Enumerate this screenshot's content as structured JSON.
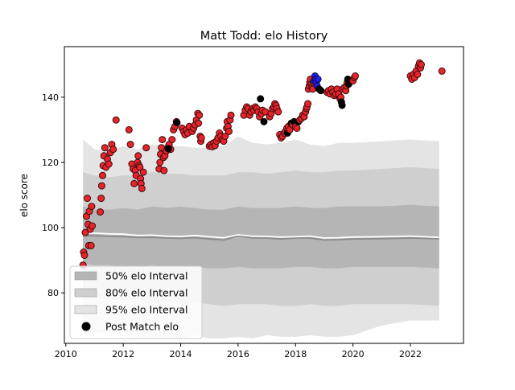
{
  "chart_data": {
    "type": "scatter",
    "title": "Matt Todd: elo History",
    "xlabel": "",
    "ylabel": "elo score",
    "xlim": [
      2009.95,
      2023.85
    ],
    "ylim": [
      64.5,
      155.5
    ],
    "x_ticks": [
      2010,
      2012,
      2014,
      2016,
      2018,
      2020,
      2022
    ],
    "x_tick_labels": [
      "2010",
      "2012",
      "2014",
      "2016",
      "2018",
      "2020",
      "2022"
    ],
    "y_ticks": [
      80,
      100,
      120,
      140
    ],
    "y_tick_labels": [
      "80",
      "100",
      "120",
      "140"
    ],
    "grid": false,
    "legend_position": "lower left",
    "colors": {
      "band_50": "#b5b5b5",
      "band_80": "#cfcfcf",
      "band_95": "#e4e4e4",
      "median_line": "#8a8a8a",
      "mean_line": "#ffffff",
      "point_red": "#e8242b",
      "point_blue": "#1f1fdf",
      "point_black": "#000000"
    },
    "legend": [
      {
        "label": "50% elo Interval",
        "swatch": "band_50"
      },
      {
        "label": "80% elo Interval",
        "swatch": "band_80"
      },
      {
        "label": "95% elo Interval",
        "swatch": "band_95"
      },
      {
        "label": "Post Match elo",
        "swatch": "marker"
      }
    ],
    "bands": {
      "x": [
        2010.6,
        2011.0,
        2011.5,
        2012.0,
        2012.5,
        2013.0,
        2013.5,
        2014.0,
        2014.5,
        2015.0,
        2015.5,
        2016.0,
        2016.5,
        2017.0,
        2017.5,
        2018.0,
        2018.5,
        2019.0,
        2019.5,
        2020.0,
        2021.0,
        2022.0,
        2023.0
      ],
      "p95_hi": [
        127,
        124,
        123.5,
        125,
        124,
        125.5,
        125,
        125,
        124.5,
        124.5,
        125,
        128,
        126,
        125.5,
        126,
        127,
        125.5,
        125,
        126,
        126,
        126.5,
        127,
        126.5
      ],
      "p80_hi": [
        117,
        116,
        115.5,
        116,
        116,
        117,
        116.5,
        116.5,
        116,
        116,
        116,
        117,
        117,
        116.5,
        117,
        117.5,
        117,
        117,
        117.5,
        117.5,
        118,
        118.5,
        118
      ],
      "p50_hi": [
        106.5,
        105.5,
        105.5,
        106,
        105.5,
        106.5,
        106,
        106.5,
        106,
        105.5,
        105.5,
        106.5,
        106,
        106,
        106,
        106.5,
        106,
        106,
        106.5,
        106.5,
        106.5,
        107,
        106.5
      ],
      "median": [
        97.5,
        97.5,
        97.3,
        97.2,
        97.0,
        97.0,
        96.8,
        96.7,
        96.9,
        96.5,
        96.2,
        97.5,
        96.8,
        96.8,
        96.5,
        96.8,
        96.8,
        96.2,
        96.3,
        96.5,
        96.6,
        96.8,
        96.6
      ],
      "mean": [
        98.2,
        98.3,
        98.1,
        98.0,
        97.6,
        97.7,
        97.4,
        97.3,
        97.6,
        97.2,
        96.9,
        97.8,
        97.4,
        97.3,
        97.1,
        97.2,
        97.4,
        96.8,
        96.9,
        97.1,
        97.2,
        97.4,
        97.0
      ],
      "p50_lo": [
        89,
        88.5,
        88.5,
        88,
        88,
        88.5,
        88,
        88,
        88,
        87.5,
        87.5,
        88,
        87.5,
        87.5,
        87.5,
        88,
        88,
        87.5,
        87.5,
        88,
        88,
        88,
        87.5
      ],
      "p80_lo": [
        78,
        78.5,
        78,
        77.5,
        77.5,
        77,
        77,
        76.5,
        77,
        76.5,
        76,
        76.5,
        76.5,
        76.5,
        76,
        76,
        76.5,
        76,
        76,
        76.5,
        76.5,
        76.5,
        76
      ],
      "p95_lo": [
        67,
        68,
        67.5,
        67,
        66.5,
        66.5,
        66.5,
        66,
        67,
        66,
        66,
        66.5,
        66,
        67,
        66.5,
        66.5,
        67,
        66.5,
        66.5,
        67,
        70,
        71.5,
        71.5
      ]
    },
    "points": [
      {
        "x": 2010.6,
        "y": 88.5,
        "c": "red"
      },
      {
        "x": 2010.62,
        "y": 92.5,
        "c": "red"
      },
      {
        "x": 2010.65,
        "y": 91.5,
        "c": "red"
      },
      {
        "x": 2010.68,
        "y": 98.5,
        "c": "red"
      },
      {
        "x": 2010.72,
        "y": 103.5,
        "c": "red"
      },
      {
        "x": 2010.75,
        "y": 109.0,
        "c": "red"
      },
      {
        "x": 2010.78,
        "y": 101.0,
        "c": "red"
      },
      {
        "x": 2010.8,
        "y": 94.5,
        "c": "red"
      },
      {
        "x": 2010.82,
        "y": 105.0,
        "c": "red"
      },
      {
        "x": 2010.85,
        "y": 99.5,
        "c": "red"
      },
      {
        "x": 2010.88,
        "y": 94.5,
        "c": "red"
      },
      {
        "x": 2010.9,
        "y": 106.5,
        "c": "red"
      },
      {
        "x": 2010.92,
        "y": 100.5,
        "c": "red"
      },
      {
        "x": 2011.2,
        "y": 104.8,
        "c": "red"
      },
      {
        "x": 2011.23,
        "y": 109.0,
        "c": "red"
      },
      {
        "x": 2011.25,
        "y": 112.8,
        "c": "red"
      },
      {
        "x": 2011.28,
        "y": 116.0,
        "c": "red"
      },
      {
        "x": 2011.3,
        "y": 119.0,
        "c": "red"
      },
      {
        "x": 2011.33,
        "y": 122.0,
        "c": "red"
      },
      {
        "x": 2011.36,
        "y": 124.5,
        "c": "red"
      },
      {
        "x": 2011.4,
        "y": 118.5,
        "c": "red"
      },
      {
        "x": 2011.45,
        "y": 121.0,
        "c": "red"
      },
      {
        "x": 2011.5,
        "y": 119.5,
        "c": "red"
      },
      {
        "x": 2011.55,
        "y": 123.0,
        "c": "red"
      },
      {
        "x": 2011.6,
        "y": 125.5,
        "c": "red"
      },
      {
        "x": 2011.65,
        "y": 124.0,
        "c": "red"
      },
      {
        "x": 2011.75,
        "y": 133.0,
        "c": "red"
      },
      {
        "x": 2012.2,
        "y": 130.0,
        "c": "red"
      },
      {
        "x": 2012.25,
        "y": 125.5,
        "c": "red"
      },
      {
        "x": 2012.3,
        "y": 119.5,
        "c": "red"
      },
      {
        "x": 2012.35,
        "y": 118.0,
        "c": "red"
      },
      {
        "x": 2012.38,
        "y": 113.5,
        "c": "red"
      },
      {
        "x": 2012.42,
        "y": 117.5,
        "c": "red"
      },
      {
        "x": 2012.45,
        "y": 116.0,
        "c": "red"
      },
      {
        "x": 2012.5,
        "y": 120.0,
        "c": "red"
      },
      {
        "x": 2012.52,
        "y": 122.0,
        "c": "red"
      },
      {
        "x": 2012.55,
        "y": 119.0,
        "c": "red"
      },
      {
        "x": 2012.58,
        "y": 118.5,
        "c": "red"
      },
      {
        "x": 2012.6,
        "y": 115.0,
        "c": "red"
      },
      {
        "x": 2012.62,
        "y": 113.5,
        "c": "red"
      },
      {
        "x": 2012.65,
        "y": 112.0,
        "c": "red"
      },
      {
        "x": 2012.7,
        "y": 117.0,
        "c": "red"
      },
      {
        "x": 2012.8,
        "y": 124.5,
        "c": "red"
      },
      {
        "x": 2013.25,
        "y": 118.0,
        "c": "red"
      },
      {
        "x": 2013.28,
        "y": 120.0,
        "c": "red"
      },
      {
        "x": 2013.3,
        "y": 122.5,
        "c": "red"
      },
      {
        "x": 2013.33,
        "y": 124.5,
        "c": "red"
      },
      {
        "x": 2013.36,
        "y": 127.0,
        "c": "red"
      },
      {
        "x": 2013.4,
        "y": 121.5,
        "c": "red"
      },
      {
        "x": 2013.42,
        "y": 117.5,
        "c": "red"
      },
      {
        "x": 2013.45,
        "y": 122.0,
        "c": "red"
      },
      {
        "x": 2013.5,
        "y": 123.5,
        "c": "red"
      },
      {
        "x": 2013.55,
        "y": 124.5,
        "c": "red"
      },
      {
        "x": 2013.6,
        "y": 125.5,
        "c": "red"
      },
      {
        "x": 2013.65,
        "y": 124.0,
        "c": "red"
      },
      {
        "x": 2013.7,
        "y": 127.0,
        "c": "red"
      },
      {
        "x": 2013.75,
        "y": 130.0,
        "c": "red"
      },
      {
        "x": 2013.8,
        "y": 131.0,
        "c": "red"
      },
      {
        "x": 2013.85,
        "y": 132.5,
        "c": "red"
      },
      {
        "x": 2013.57,
        "y": 124.2,
        "c": "black"
      },
      {
        "x": 2013.87,
        "y": 132.2,
        "c": "black"
      },
      {
        "x": 2014.05,
        "y": 130.5,
        "c": "red"
      },
      {
        "x": 2014.1,
        "y": 129.5,
        "c": "red"
      },
      {
        "x": 2014.15,
        "y": 128.5,
        "c": "red"
      },
      {
        "x": 2014.2,
        "y": 130.0,
        "c": "red"
      },
      {
        "x": 2014.25,
        "y": 129.0,
        "c": "red"
      },
      {
        "x": 2014.3,
        "y": 131.0,
        "c": "red"
      },
      {
        "x": 2014.4,
        "y": 129.5,
        "c": "red"
      },
      {
        "x": 2014.45,
        "y": 130.5,
        "c": "red"
      },
      {
        "x": 2014.5,
        "y": 131.5,
        "c": "red"
      },
      {
        "x": 2014.55,
        "y": 133.0,
        "c": "red"
      },
      {
        "x": 2014.6,
        "y": 135.0,
        "c": "red"
      },
      {
        "x": 2014.62,
        "y": 132.0,
        "c": "red"
      },
      {
        "x": 2014.65,
        "y": 134.5,
        "c": "red"
      },
      {
        "x": 2014.68,
        "y": 128.0,
        "c": "red"
      },
      {
        "x": 2014.7,
        "y": 126.5,
        "c": "red"
      },
      {
        "x": 2014.72,
        "y": 127.5,
        "c": "red"
      },
      {
        "x": 2015.0,
        "y": 125.0,
        "c": "red"
      },
      {
        "x": 2015.05,
        "y": 125.5,
        "c": "red"
      },
      {
        "x": 2015.1,
        "y": 124.8,
        "c": "red"
      },
      {
        "x": 2015.15,
        "y": 126.0,
        "c": "red"
      },
      {
        "x": 2015.2,
        "y": 125.2,
        "c": "red"
      },
      {
        "x": 2015.25,
        "y": 126.5,
        "c": "red"
      },
      {
        "x": 2015.3,
        "y": 127.5,
        "c": "red"
      },
      {
        "x": 2015.35,
        "y": 129.0,
        "c": "red"
      },
      {
        "x": 2015.4,
        "y": 128.0,
        "c": "red"
      },
      {
        "x": 2015.45,
        "y": 127.0,
        "c": "red"
      },
      {
        "x": 2015.5,
        "y": 126.5,
        "c": "red"
      },
      {
        "x": 2015.55,
        "y": 128.0,
        "c": "red"
      },
      {
        "x": 2015.6,
        "y": 130.5,
        "c": "red"
      },
      {
        "x": 2015.62,
        "y": 132.5,
        "c": "red"
      },
      {
        "x": 2015.65,
        "y": 131.0,
        "c": "red"
      },
      {
        "x": 2015.68,
        "y": 129.5,
        "c": "red"
      },
      {
        "x": 2015.72,
        "y": 133.0,
        "c": "red"
      },
      {
        "x": 2015.75,
        "y": 134.5,
        "c": "red"
      },
      {
        "x": 2016.2,
        "y": 134.5,
        "c": "red"
      },
      {
        "x": 2016.25,
        "y": 136.0,
        "c": "red"
      },
      {
        "x": 2016.3,
        "y": 137.0,
        "c": "red"
      },
      {
        "x": 2016.35,
        "y": 136.5,
        "c": "red"
      },
      {
        "x": 2016.4,
        "y": 134.5,
        "c": "red"
      },
      {
        "x": 2016.45,
        "y": 135.5,
        "c": "red"
      },
      {
        "x": 2016.5,
        "y": 136.5,
        "c": "red"
      },
      {
        "x": 2016.55,
        "y": 136.0,
        "c": "red"
      },
      {
        "x": 2016.6,
        "y": 137.0,
        "c": "red"
      },
      {
        "x": 2016.65,
        "y": 136.5,
        "c": "red"
      },
      {
        "x": 2016.7,
        "y": 135.5,
        "c": "red"
      },
      {
        "x": 2016.75,
        "y": 134.0,
        "c": "red"
      },
      {
        "x": 2016.78,
        "y": 139.5,
        "c": "black"
      },
      {
        "x": 2016.82,
        "y": 135.0,
        "c": "red"
      },
      {
        "x": 2016.85,
        "y": 136.0,
        "c": "red"
      },
      {
        "x": 2016.9,
        "y": 132.5,
        "c": "black"
      },
      {
        "x": 2016.95,
        "y": 135.5,
        "c": "red"
      },
      {
        "x": 2017.1,
        "y": 134.0,
        "c": "red"
      },
      {
        "x": 2017.15,
        "y": 135.0,
        "c": "red"
      },
      {
        "x": 2017.2,
        "y": 136.5,
        "c": "red"
      },
      {
        "x": 2017.25,
        "y": 137.0,
        "c": "red"
      },
      {
        "x": 2017.28,
        "y": 138.0,
        "c": "red"
      },
      {
        "x": 2017.32,
        "y": 137.5,
        "c": "red"
      },
      {
        "x": 2017.35,
        "y": 136.5,
        "c": "red"
      },
      {
        "x": 2017.4,
        "y": 135.5,
        "c": "red"
      },
      {
        "x": 2017.45,
        "y": 128.5,
        "c": "red"
      },
      {
        "x": 2017.5,
        "y": 127.5,
        "c": "red"
      },
      {
        "x": 2017.55,
        "y": 128.0,
        "c": "red"
      },
      {
        "x": 2017.6,
        "y": 129.0,
        "c": "red"
      },
      {
        "x": 2017.65,
        "y": 129.5,
        "c": "red"
      },
      {
        "x": 2017.7,
        "y": 130.5,
        "c": "red"
      },
      {
        "x": 2017.72,
        "y": 129.0,
        "c": "black"
      },
      {
        "x": 2017.75,
        "y": 131.0,
        "c": "red"
      },
      {
        "x": 2017.8,
        "y": 130.0,
        "c": "red"
      },
      {
        "x": 2017.85,
        "y": 132.0,
        "c": "black"
      },
      {
        "x": 2017.9,
        "y": 131.5,
        "c": "red"
      },
      {
        "x": 2017.95,
        "y": 132.5,
        "c": "black"
      },
      {
        "x": 2018.0,
        "y": 131.0,
        "c": "red"
      },
      {
        "x": 2018.05,
        "y": 130.5,
        "c": "red"
      },
      {
        "x": 2018.1,
        "y": 132.5,
        "c": "black"
      },
      {
        "x": 2018.15,
        "y": 133.0,
        "c": "red"
      },
      {
        "x": 2018.2,
        "y": 133.5,
        "c": "red"
      },
      {
        "x": 2018.25,
        "y": 134.5,
        "c": "red"
      },
      {
        "x": 2018.3,
        "y": 134.0,
        "c": "red"
      },
      {
        "x": 2018.35,
        "y": 135.5,
        "c": "red"
      },
      {
        "x": 2018.38,
        "y": 136.5,
        "c": "red"
      },
      {
        "x": 2018.4,
        "y": 137.0,
        "c": "red"
      },
      {
        "x": 2018.43,
        "y": 138.0,
        "c": "red"
      },
      {
        "x": 2018.45,
        "y": 142.5,
        "c": "red"
      },
      {
        "x": 2018.48,
        "y": 143.5,
        "c": "red"
      },
      {
        "x": 2018.5,
        "y": 144.5,
        "c": "red"
      },
      {
        "x": 2018.52,
        "y": 145.5,
        "c": "red"
      },
      {
        "x": 2018.55,
        "y": 144.0,
        "c": "red"
      },
      {
        "x": 2018.58,
        "y": 143.0,
        "c": "red"
      },
      {
        "x": 2018.6,
        "y": 142.5,
        "c": "red"
      },
      {
        "x": 2018.62,
        "y": 144.5,
        "c": "red"
      },
      {
        "x": 2018.65,
        "y": 145.0,
        "c": "blue"
      },
      {
        "x": 2018.68,
        "y": 146.5,
        "c": "blue"
      },
      {
        "x": 2018.7,
        "y": 145.5,
        "c": "blue"
      },
      {
        "x": 2018.72,
        "y": 144.5,
        "c": "blue"
      },
      {
        "x": 2018.75,
        "y": 143.5,
        "c": "blue"
      },
      {
        "x": 2018.78,
        "y": 145.5,
        "c": "blue"
      },
      {
        "x": 2018.82,
        "y": 142.5,
        "c": "black"
      },
      {
        "x": 2018.88,
        "y": 142.0,
        "c": "black"
      },
      {
        "x": 2019.1,
        "y": 141.5,
        "c": "red"
      },
      {
        "x": 2019.15,
        "y": 142.0,
        "c": "red"
      },
      {
        "x": 2019.2,
        "y": 141.0,
        "c": "red"
      },
      {
        "x": 2019.25,
        "y": 142.5,
        "c": "red"
      },
      {
        "x": 2019.3,
        "y": 141.5,
        "c": "red"
      },
      {
        "x": 2019.35,
        "y": 140.5,
        "c": "red"
      },
      {
        "x": 2019.4,
        "y": 141.0,
        "c": "red"
      },
      {
        "x": 2019.45,
        "y": 142.5,
        "c": "red"
      },
      {
        "x": 2019.5,
        "y": 141.0,
        "c": "red"
      },
      {
        "x": 2019.55,
        "y": 139.5,
        "c": "red"
      },
      {
        "x": 2019.58,
        "y": 140.0,
        "c": "red"
      },
      {
        "x": 2019.6,
        "y": 138.5,
        "c": "black"
      },
      {
        "x": 2019.62,
        "y": 137.5,
        "c": "black"
      },
      {
        "x": 2019.65,
        "y": 142.5,
        "c": "red"
      },
      {
        "x": 2019.7,
        "y": 143.0,
        "c": "red"
      },
      {
        "x": 2019.75,
        "y": 142.0,
        "c": "red"
      },
      {
        "x": 2019.78,
        "y": 143.5,
        "c": "red"
      },
      {
        "x": 2019.8,
        "y": 144.5,
        "c": "red"
      },
      {
        "x": 2019.82,
        "y": 145.5,
        "c": "black"
      },
      {
        "x": 2019.85,
        "y": 144.0,
        "c": "black"
      },
      {
        "x": 2019.88,
        "y": 145.0,
        "c": "black"
      },
      {
        "x": 2020.0,
        "y": 145.0,
        "c": "red"
      },
      {
        "x": 2020.05,
        "y": 146.0,
        "c": "red"
      },
      {
        "x": 2020.08,
        "y": 146.5,
        "c": "red"
      },
      {
        "x": 2022.0,
        "y": 146.5,
        "c": "red"
      },
      {
        "x": 2022.05,
        "y": 145.5,
        "c": "red"
      },
      {
        "x": 2022.1,
        "y": 147.0,
        "c": "red"
      },
      {
        "x": 2022.15,
        "y": 146.0,
        "c": "red"
      },
      {
        "x": 2022.2,
        "y": 148.0,
        "c": "red"
      },
      {
        "x": 2022.25,
        "y": 147.0,
        "c": "red"
      },
      {
        "x": 2022.28,
        "y": 149.5,
        "c": "red"
      },
      {
        "x": 2022.32,
        "y": 150.5,
        "c": "red"
      },
      {
        "x": 2022.35,
        "y": 149.0,
        "c": "red"
      },
      {
        "x": 2022.38,
        "y": 150.0,
        "c": "red"
      },
      {
        "x": 2023.1,
        "y": 148.0,
        "c": "red"
      }
    ]
  }
}
